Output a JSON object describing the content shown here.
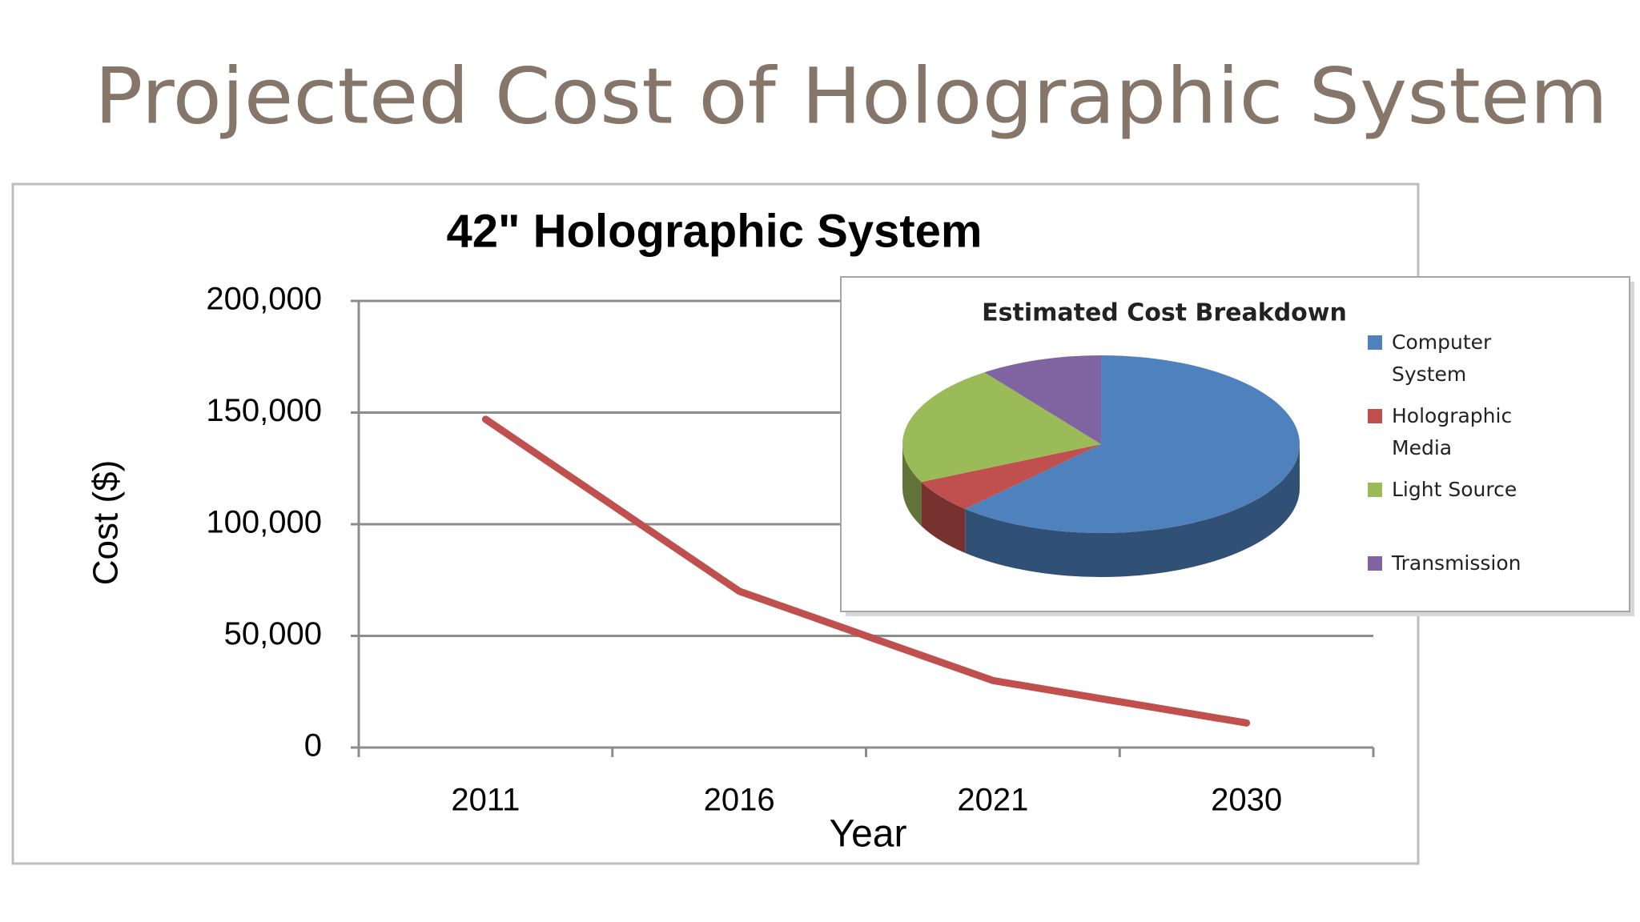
{
  "title": "Projected Cost of Holographic System",
  "chart_data": [
    {
      "type": "line",
      "title": "42\" Holographic System",
      "x_label": "Year",
      "y_label": "Cost ($)",
      "categories": [
        "2011",
        "2016",
        "2021",
        "2030"
      ],
      "values": [
        147000,
        70000,
        30000,
        11000
      ],
      "color": "#c0504d",
      "ylim": [
        0,
        200000
      ],
      "yticks": [
        0,
        {
          "value": 50000,
          "label": "50,000"
        },
        {
          "value": 100000,
          "label": "100,000"
        },
        {
          "value": 150000,
          "label": "150,000"
        },
        {
          "value": 200000,
          "label": "200,000"
        }
      ],
      "grid": true
    },
    {
      "type": "pie",
      "title": "Estimated Cost Breakdown",
      "categories": [
        "Computer System",
        "Holographic Media",
        "Light Source",
        "Transmission"
      ],
      "values": [
        62,
        6,
        22,
        10
      ],
      "colors": [
        "#4f81bd",
        "#c0504d",
        "#9bbb59",
        "#8064a2"
      ],
      "legend": "right"
    }
  ]
}
